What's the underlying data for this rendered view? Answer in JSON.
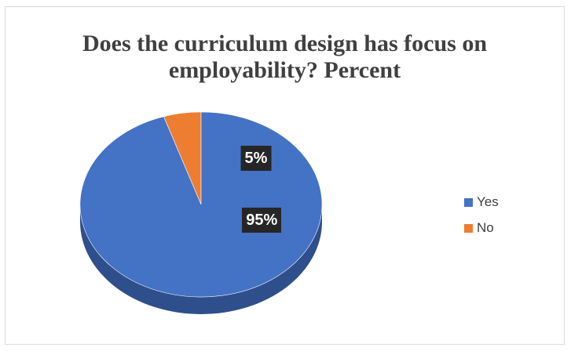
{
  "chart_data": {
    "type": "pie",
    "title": "Does the curriculum design has focus on employability? Percent",
    "title_lines": [
      "Does the curriculum design has focus on",
      "employability? Percent"
    ],
    "categories": [
      "Yes",
      "No"
    ],
    "values": [
      95,
      5
    ],
    "data_labels": [
      "95%",
      "5%"
    ],
    "colors": [
      "#4472C4",
      "#ED7D31"
    ],
    "side_colors": [
      "#2F4F8C",
      "#A85A23"
    ],
    "legend_position": "right",
    "style": "3d"
  }
}
